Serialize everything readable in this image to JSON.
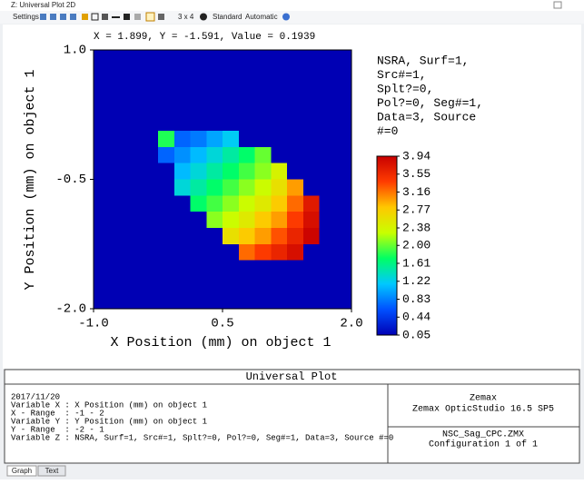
{
  "window": {
    "title": "Z: Universal Plot 2D"
  },
  "toolbar": {
    "settings": "Settings",
    "layout": "3 x 4",
    "style": "Standard",
    "scale": "Automatic"
  },
  "chart_data": {
    "type": "heatmap",
    "header": "X = 1.899, Y = -1.591, Value = 0.1939",
    "legend_text": [
      "NSRA, Surf=1,",
      "Src#=1,",
      "Splt?=0,",
      "Pol?=0, Seg#=1,",
      "Data=3, Source",
      "#=0"
    ],
    "xlabel": "X Position (mm) on object 1",
    "ylabel": "Y Position (mm) on object 1",
    "xlim": [
      -1,
      2
    ],
    "ylim": [
      -2,
      1
    ],
    "xticks": [
      {
        "value": -1,
        "label": "-1.0"
      },
      0.5,
      {
        "value": 2,
        "label": "2.0"
      }
    ],
    "yticks": [
      {
        "value": 1,
        "label": "1.0"
      },
      -0.5,
      {
        "value": -2,
        "label": "-2.0"
      }
    ],
    "z": [
      [
        0.05,
        0.05,
        0.05,
        0.05,
        0.05,
        0.05,
        0.05,
        0.05,
        0.05,
        0.05,
        0.05,
        0.05,
        0.05,
        0.05,
        0.05,
        0.05
      ],
      [
        0.05,
        0.05,
        0.05,
        0.05,
        0.05,
        0.05,
        0.05,
        0.05,
        0.05,
        0.05,
        0.05,
        0.05,
        0.05,
        0.05,
        0.05,
        0.05
      ],
      [
        0.05,
        0.05,
        0.05,
        0.05,
        0.05,
        0.05,
        0.05,
        0.05,
        0.05,
        0.05,
        0.05,
        0.05,
        0.05,
        0.05,
        0.05,
        0.05
      ],
      [
        0.05,
        0.05,
        0.05,
        0.05,
        0.05,
        0.05,
        0.05,
        0.05,
        0.05,
        0.05,
        0.05,
        0.05,
        0.05,
        0.05,
        0.05,
        0.05
      ],
      [
        0.05,
        0.05,
        0.05,
        0.05,
        0.05,
        0.05,
        0.05,
        0.05,
        0.05,
        0.05,
        0.05,
        0.05,
        0.05,
        0.05,
        0.05,
        0.05
      ],
      [
        0.05,
        0.05,
        0.05,
        0.05,
        1.8,
        0.7,
        0.8,
        1.0,
        1.2,
        0.05,
        0.05,
        0.05,
        0.05,
        0.05,
        0.05,
        0.05
      ],
      [
        0.05,
        0.05,
        0.05,
        0.05,
        0.7,
        0.9,
        1.1,
        1.3,
        1.5,
        1.7,
        2.0,
        0.05,
        0.05,
        0.05,
        0.05,
        0.05
      ],
      [
        0.05,
        0.05,
        0.05,
        0.05,
        0.05,
        1.1,
        1.3,
        1.5,
        1.7,
        1.9,
        2.1,
        2.4,
        0.05,
        0.05,
        0.05,
        0.05
      ],
      [
        0.05,
        0.05,
        0.05,
        0.05,
        0.05,
        1.3,
        1.5,
        1.7,
        1.9,
        2.1,
        2.3,
        2.6,
        3.0,
        0.05,
        0.05,
        0.05
      ],
      [
        0.05,
        0.05,
        0.05,
        0.05,
        0.05,
        0.05,
        1.7,
        1.9,
        2.1,
        2.3,
        2.5,
        2.8,
        3.2,
        3.7,
        0.05,
        0.05
      ],
      [
        0.05,
        0.05,
        0.05,
        0.05,
        0.05,
        0.05,
        0.05,
        2.1,
        2.3,
        2.5,
        2.8,
        3.0,
        3.4,
        3.8,
        0.05,
        0.05
      ],
      [
        0.05,
        0.05,
        0.05,
        0.05,
        0.05,
        0.05,
        0.05,
        0.05,
        2.6,
        2.8,
        3.0,
        3.3,
        3.6,
        3.9,
        0.05,
        0.05
      ],
      [
        0.05,
        0.05,
        0.05,
        0.05,
        0.05,
        0.05,
        0.05,
        0.05,
        0.05,
        3.2,
        3.4,
        3.6,
        3.8,
        0.05,
        0.05,
        0.05
      ],
      [
        0.05,
        0.05,
        0.05,
        0.05,
        0.05,
        0.05,
        0.05,
        0.05,
        0.05,
        0.05,
        0.05,
        0.05,
        0.05,
        0.05,
        0.05,
        0.05
      ],
      [
        0.05,
        0.05,
        0.05,
        0.05,
        0.05,
        0.05,
        0.05,
        0.05,
        0.05,
        0.05,
        0.05,
        0.05,
        0.05,
        0.05,
        0.05,
        0.05
      ],
      [
        0.05,
        0.05,
        0.05,
        0.05,
        0.05,
        0.05,
        0.05,
        0.05,
        0.05,
        0.05,
        0.05,
        0.05,
        0.05,
        0.05,
        0.05,
        0.05
      ]
    ],
    "colorbar": {
      "lim": [
        0.05,
        3.94
      ],
      "ticks": [
        0.05,
        0.44,
        0.83,
        1.22,
        1.61,
        {
          "value": 2,
          "label": "2.00"
        },
        2.38,
        2.77,
        3.16,
        3.55,
        3.94
      ]
    },
    "colors": [
      "#0000b4",
      "#0050ff",
      "#00c8ff",
      "#00ff64",
      "#c8ff00",
      "#ffc800",
      "#ff3c00",
      "#c80000"
    ]
  },
  "footer": {
    "title": "Universal Plot",
    "lines": [
      "2017/11/20",
      "Variable X : X Position (mm) on object 1",
      "X - Range  : -1 - 2",
      "Variable Y : Y Position (mm) on object 1",
      "Y - Range  : -2 - 1",
      "Variable Z : NSRA, Surf=1, Src#=1, Splt?=0, Pol?=0, Seg#=1, Data=3, Source #=0"
    ],
    "company": "Zemax",
    "product": "Zemax OpticStudio 16.5 SP5",
    "file": "NSC_Sag_CPC.ZMX",
    "configuration": "Configuration 1 of 1"
  },
  "tabs": [
    "Graph",
    "Text"
  ]
}
